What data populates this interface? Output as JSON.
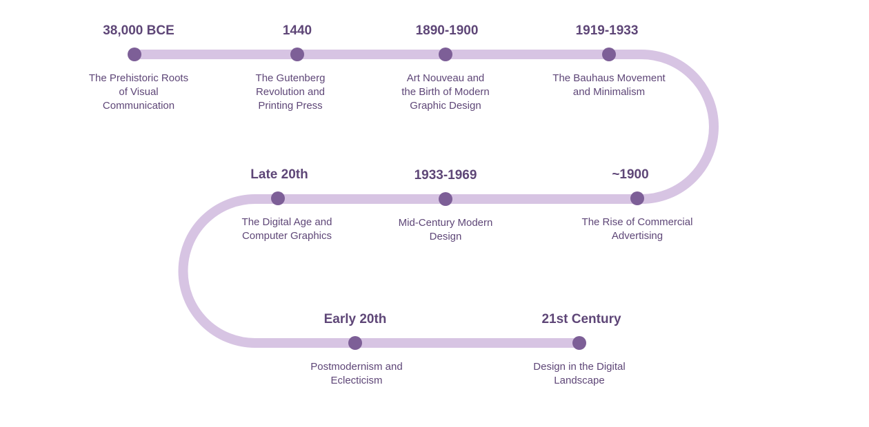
{
  "colors": {
    "track": "#d7c4e3",
    "node": "#7d5f97",
    "text": "#5e4677"
  },
  "events": [
    {
      "date": "38,000 BCE",
      "lines": [
        "The Prehistoric Roots",
        "of Visual",
        "Communication"
      ]
    },
    {
      "date": "1440",
      "lines": [
        "The Gutenberg",
        "Revolution and",
        "Printing Press"
      ]
    },
    {
      "date": "1890-1900",
      "lines": [
        "Art Nouveau and",
        "the Birth of Modern",
        "Graphic Design"
      ]
    },
    {
      "date": "1919-1933",
      "lines": [
        "The Bauhaus Movement",
        "and Minimalism"
      ]
    },
    {
      "date": "~1900",
      "lines": [
        "The Rise of Commercial",
        "Advertising"
      ]
    },
    {
      "date": "1933-1969",
      "lines": [
        "Mid-Century Modern",
        "Design"
      ]
    },
    {
      "date": "Late 20th",
      "lines": [
        "The Digital Age and",
        "Computer Graphics"
      ]
    },
    {
      "date": "Early 20th",
      "lines": [
        "Postmodernism and",
        "Eclecticism"
      ]
    },
    {
      "date": "21st Century",
      "lines": [
        "Design in the Digital",
        "Landscape"
      ]
    }
  ]
}
